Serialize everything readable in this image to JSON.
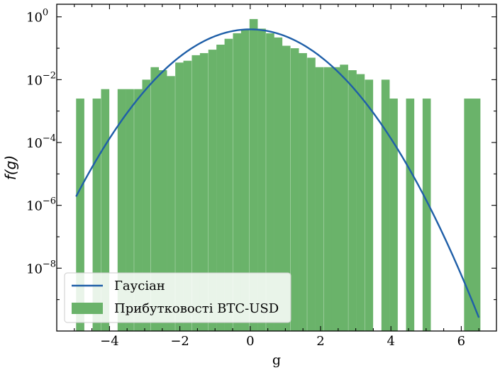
{
  "chart_data": {
    "type": "bar",
    "xlabel": "g",
    "ylabel": "f(g)",
    "y_scale": "log",
    "xlim": [
      -5.5,
      7.0
    ],
    "ylim_log10": [
      -10.0,
      0.4
    ],
    "x_ticks": [
      {
        "value": -4,
        "label": "−4"
      },
      {
        "value": -2,
        "label": "−2"
      },
      {
        "value": 0,
        "label": "0"
      },
      {
        "value": 2,
        "label": "2"
      },
      {
        "value": 4,
        "label": "4"
      },
      {
        "value": 6,
        "label": "6"
      }
    ],
    "y_ticks": [
      {
        "exp": 0,
        "base": "10",
        "sup": "0"
      },
      {
        "exp": -2,
        "base": "10",
        "sup": "−2"
      },
      {
        "exp": -4,
        "base": "10",
        "sup": "−4"
      },
      {
        "exp": -6,
        "base": "10",
        "sup": "−6"
      },
      {
        "exp": -8,
        "base": "10",
        "sup": "−8"
      }
    ],
    "histogram": {
      "name": "Прибутковості BTC-USD",
      "color": "#6ab36a",
      "bin_width": 0.2342,
      "bins": [
        {
          "left": -4.95,
          "value": 0.0025
        },
        {
          "left": -4.48,
          "value": 0.0025
        },
        {
          "left": -4.24,
          "value": 0.005
        },
        {
          "left": -3.77,
          "value": 0.005
        },
        {
          "left": -3.54,
          "value": 0.005
        },
        {
          "left": -3.3,
          "value": 0.005
        },
        {
          "left": -3.07,
          "value": 0.01
        },
        {
          "left": -2.83,
          "value": 0.025
        },
        {
          "left": -2.6,
          "value": 0.02
        },
        {
          "left": -2.37,
          "value": 0.013
        },
        {
          "left": -2.13,
          "value": 0.035
        },
        {
          "left": -1.9,
          "value": 0.04
        },
        {
          "left": -1.66,
          "value": 0.06
        },
        {
          "left": -1.43,
          "value": 0.07
        },
        {
          "left": -1.19,
          "value": 0.09
        },
        {
          "left": -0.96,
          "value": 0.13
        },
        {
          "left": -0.73,
          "value": 0.2
        },
        {
          "left": -0.49,
          "value": 0.3
        },
        {
          "left": -0.26,
          "value": 0.4
        },
        {
          "left": -0.02,
          "value": 0.85
        },
        {
          "left": 0.21,
          "value": 0.42
        },
        {
          "left": 0.45,
          "value": 0.3
        },
        {
          "left": 0.68,
          "value": 0.22
        },
        {
          "left": 0.91,
          "value": 0.12
        },
        {
          "left": 1.15,
          "value": 0.1
        },
        {
          "left": 1.38,
          "value": 0.07
        },
        {
          "left": 1.62,
          "value": 0.05
        },
        {
          "left": 1.85,
          "value": 0.025
        },
        {
          "left": 2.09,
          "value": 0.025
        },
        {
          "left": 2.32,
          "value": 0.025
        },
        {
          "left": 2.55,
          "value": 0.03
        },
        {
          "left": 2.79,
          "value": 0.02
        },
        {
          "left": 3.02,
          "value": 0.015
        },
        {
          "left": 3.26,
          "value": 0.01
        },
        {
          "left": 3.73,
          "value": 0.01
        },
        {
          "left": 3.96,
          "value": 0.0025
        },
        {
          "left": 4.43,
          "value": 0.0025
        },
        {
          "left": 4.9,
          "value": 0.0025
        },
        {
          "left": 6.08,
          "value": 0.0025
        },
        {
          "left": 6.31,
          "value": 0.0025
        }
      ]
    },
    "gaussian": {
      "name": "Гаусіан",
      "color": "#1f5fa8",
      "mean": 0.0,
      "std": 1.0,
      "x_range": [
        -4.95,
        6.5
      ],
      "peak_value": 0.4
    },
    "legend": {
      "placement": "lower-left",
      "entries": [
        {
          "label": "Гаусіан",
          "kind": "line",
          "color": "#1f5fa8"
        },
        {
          "label": "Прибутковості BTC-USD",
          "kind": "patch",
          "color": "#6ab36a"
        }
      ]
    },
    "grid": false
  }
}
